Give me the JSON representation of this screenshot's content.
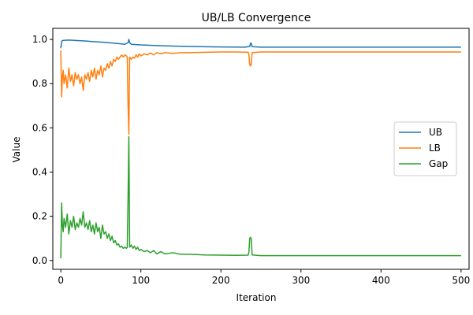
{
  "chart_data": {
    "type": "line",
    "title": "UB/LB Convergence",
    "xlabel": "Iteration",
    "ylabel": "Value",
    "xlim": [
      -10,
      510
    ],
    "ylim": [
      -0.04,
      1.05
    ],
    "xticks": [
      0,
      100,
      200,
      300,
      400,
      500
    ],
    "yticks": [
      0.0,
      0.2,
      0.4,
      0.6,
      0.8,
      1.0
    ],
    "grid": false,
    "legend_position": "center-right",
    "series": [
      {
        "name": "UB",
        "color": "#1f77b4",
        "points": [
          [
            0,
            0.96
          ],
          [
            1,
            0.99
          ],
          [
            2,
            0.995
          ],
          [
            5,
            0.996
          ],
          [
            10,
            0.997
          ],
          [
            15,
            0.996
          ],
          [
            20,
            0.995
          ],
          [
            30,
            0.993
          ],
          [
            40,
            0.99
          ],
          [
            50,
            0.988
          ],
          [
            60,
            0.985
          ],
          [
            70,
            0.982
          ],
          [
            80,
            0.978
          ],
          [
            84,
            0.985
          ],
          [
            85,
            1.0
          ],
          [
            86,
            0.985
          ],
          [
            88,
            0.978
          ],
          [
            100,
            0.975
          ],
          [
            120,
            0.972
          ],
          [
            140,
            0.97
          ],
          [
            160,
            0.968
          ],
          [
            200,
            0.966
          ],
          [
            230,
            0.965
          ],
          [
            236,
            0.968
          ],
          [
            237,
            0.983
          ],
          [
            238,
            0.982
          ],
          [
            239,
            0.967
          ],
          [
            250,
            0.965
          ],
          [
            300,
            0.965
          ],
          [
            400,
            0.965
          ],
          [
            500,
            0.965
          ]
        ]
      },
      {
        "name": "LB",
        "color": "#ff7f0e",
        "points": [
          [
            0,
            0.95
          ],
          [
            1,
            0.74
          ],
          [
            2,
            0.83
          ],
          [
            3,
            0.86
          ],
          [
            4,
            0.8
          ],
          [
            6,
            0.84
          ],
          [
            8,
            0.78
          ],
          [
            10,
            0.87
          ],
          [
            12,
            0.81
          ],
          [
            14,
            0.84
          ],
          [
            16,
            0.79
          ],
          [
            18,
            0.85
          ],
          [
            20,
            0.82
          ],
          [
            22,
            0.84
          ],
          [
            24,
            0.8
          ],
          [
            26,
            0.83
          ],
          [
            28,
            0.77
          ],
          [
            30,
            0.84
          ],
          [
            32,
            0.82
          ],
          [
            34,
            0.85
          ],
          [
            36,
            0.81
          ],
          [
            38,
            0.86
          ],
          [
            40,
            0.83
          ],
          [
            42,
            0.87
          ],
          [
            44,
            0.82
          ],
          [
            46,
            0.86
          ],
          [
            48,
            0.84
          ],
          [
            50,
            0.88
          ],
          [
            52,
            0.83
          ],
          [
            54,
            0.87
          ],
          [
            56,
            0.86
          ],
          [
            58,
            0.89
          ],
          [
            60,
            0.87
          ],
          [
            62,
            0.9
          ],
          [
            64,
            0.88
          ],
          [
            66,
            0.91
          ],
          [
            68,
            0.9
          ],
          [
            70,
            0.92
          ],
          [
            72,
            0.91
          ],
          [
            74,
            0.92
          ],
          [
            76,
            0.93
          ],
          [
            78,
            0.92
          ],
          [
            80,
            0.93
          ],
          [
            82,
            0.925
          ],
          [
            83,
            0.92
          ],
          [
            84,
            0.7
          ],
          [
            85,
            0.57
          ],
          [
            86,
            0.92
          ],
          [
            88,
            0.91
          ],
          [
            90,
            0.92
          ],
          [
            92,
            0.915
          ],
          [
            94,
            0.93
          ],
          [
            96,
            0.92
          ],
          [
            98,
            0.935
          ],
          [
            100,
            0.925
          ],
          [
            104,
            0.935
          ],
          [
            108,
            0.93
          ],
          [
            112,
            0.938
          ],
          [
            116,
            0.93
          ],
          [
            120,
            0.94
          ],
          [
            125,
            0.935
          ],
          [
            130,
            0.94
          ],
          [
            140,
            0.937
          ],
          [
            150,
            0.94
          ],
          [
            160,
            0.94
          ],
          [
            180,
            0.942
          ],
          [
            200,
            0.943
          ],
          [
            220,
            0.943
          ],
          [
            234,
            0.942
          ],
          [
            235,
            0.93
          ],
          [
            236,
            0.885
          ],
          [
            237,
            0.88
          ],
          [
            238,
            0.89
          ],
          [
            239,
            0.94
          ],
          [
            250,
            0.943
          ],
          [
            300,
            0.943
          ],
          [
            400,
            0.943
          ],
          [
            500,
            0.943
          ]
        ]
      },
      {
        "name": "Gap",
        "color": "#2ca02c",
        "points": [
          [
            0,
            0.01
          ],
          [
            1,
            0.26
          ],
          [
            2,
            0.16
          ],
          [
            3,
            0.13
          ],
          [
            4,
            0.19
          ],
          [
            6,
            0.15
          ],
          [
            8,
            0.21
          ],
          [
            10,
            0.12
          ],
          [
            12,
            0.18
          ],
          [
            14,
            0.15
          ],
          [
            16,
            0.2
          ],
          [
            18,
            0.14
          ],
          [
            20,
            0.17
          ],
          [
            22,
            0.15
          ],
          [
            24,
            0.19
          ],
          [
            26,
            0.16
          ],
          [
            28,
            0.22
          ],
          [
            30,
            0.15
          ],
          [
            32,
            0.17
          ],
          [
            34,
            0.14
          ],
          [
            36,
            0.18
          ],
          [
            38,
            0.13
          ],
          [
            40,
            0.16
          ],
          [
            42,
            0.12
          ],
          [
            44,
            0.17
          ],
          [
            46,
            0.13
          ],
          [
            48,
            0.15
          ],
          [
            50,
            0.1
          ],
          [
            52,
            0.16
          ],
          [
            54,
            0.12
          ],
          [
            56,
            0.13
          ],
          [
            58,
            0.1
          ],
          [
            60,
            0.12
          ],
          [
            62,
            0.09
          ],
          [
            64,
            0.11
          ],
          [
            66,
            0.08
          ],
          [
            68,
            0.09
          ],
          [
            70,
            0.07
          ],
          [
            72,
            0.075
          ],
          [
            74,
            0.06
          ],
          [
            76,
            0.065
          ],
          [
            78,
            0.055
          ],
          [
            80,
            0.06
          ],
          [
            82,
            0.055
          ],
          [
            83,
            0.06
          ],
          [
            84,
            0.28
          ],
          [
            85,
            0.56
          ],
          [
            86,
            0.06
          ],
          [
            88,
            0.07
          ],
          [
            90,
            0.055
          ],
          [
            92,
            0.065
          ],
          [
            94,
            0.05
          ],
          [
            96,
            0.06
          ],
          [
            98,
            0.045
          ],
          [
            100,
            0.05
          ],
          [
            104,
            0.04
          ],
          [
            108,
            0.045
          ],
          [
            112,
            0.035
          ],
          [
            116,
            0.045
          ],
          [
            120,
            0.03
          ],
          [
            125,
            0.04
          ],
          [
            130,
            0.03
          ],
          [
            140,
            0.035
          ],
          [
            150,
            0.028
          ],
          [
            160,
            0.028
          ],
          [
            180,
            0.025
          ],
          [
            200,
            0.024
          ],
          [
            220,
            0.023
          ],
          [
            234,
            0.024
          ],
          [
            235,
            0.04
          ],
          [
            236,
            0.1
          ],
          [
            237,
            0.105
          ],
          [
            238,
            0.095
          ],
          [
            239,
            0.025
          ],
          [
            250,
            0.022
          ],
          [
            300,
            0.022
          ],
          [
            400,
            0.022
          ],
          [
            500,
            0.022
          ]
        ]
      }
    ]
  }
}
